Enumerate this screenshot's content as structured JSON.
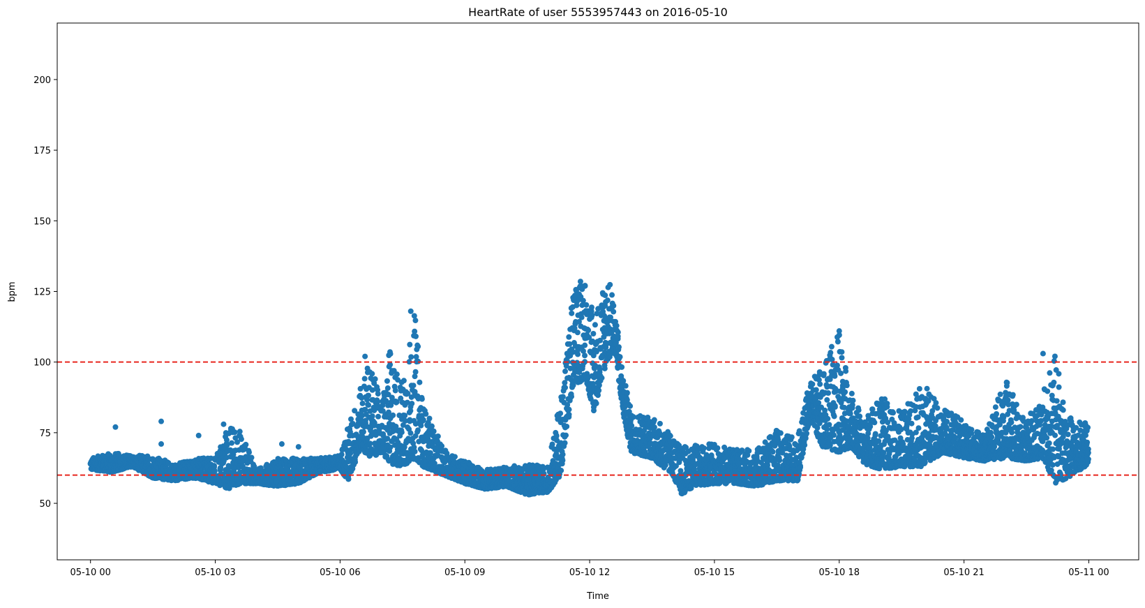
{
  "chart_data": {
    "type": "scatter",
    "title": "HeartRate of user 5553957443 on 2016-05-10",
    "xlabel": "Time",
    "ylabel": "bpm",
    "x_unit": "hours since 2016-05-10 00:00",
    "xlim": [
      -0.8,
      25.2
    ],
    "ylim": [
      30,
      220
    ],
    "x_ticks": [
      {
        "value": 0,
        "label": "05-10 00"
      },
      {
        "value": 3,
        "label": "05-10 03"
      },
      {
        "value": 6,
        "label": "05-10 06"
      },
      {
        "value": 9,
        "label": "05-10 09"
      },
      {
        "value": 12,
        "label": "05-10 12"
      },
      {
        "value": 15,
        "label": "05-10 15"
      },
      {
        "value": 18,
        "label": "05-10 18"
      },
      {
        "value": 21,
        "label": "05-10 21"
      },
      {
        "value": 24,
        "label": "05-11 00"
      }
    ],
    "y_ticks": [
      {
        "value": 50,
        "label": "50"
      },
      {
        "value": 75,
        "label": "75"
      },
      {
        "value": 100,
        "label": "100"
      },
      {
        "value": 125,
        "label": "125"
      },
      {
        "value": 150,
        "label": "150"
      },
      {
        "value": 175,
        "label": "175"
      },
      {
        "value": 200,
        "label": "200"
      }
    ],
    "reference_lines": [
      {
        "y": 100,
        "color": "#e8261d",
        "style": "dashed"
      },
      {
        "y": 60,
        "color": "#e8261d",
        "style": "dashed"
      }
    ],
    "series": [
      {
        "color": "#1f77b4",
        "points_profile": {
          "note": "approximate band of heart-rate readings (min, max) over time",
          "x": [
            0.0,
            0.5,
            1.0,
            1.5,
            2.0,
            2.5,
            3.0,
            3.3,
            3.6,
            4.0,
            4.5,
            5.0,
            5.5,
            6.0,
            6.2,
            6.5,
            6.7,
            7.0,
            7.2,
            7.5,
            7.8,
            8.0,
            8.5,
            9.0,
            9.5,
            10.0,
            10.5,
            11.0,
            11.3,
            11.6,
            11.9,
            12.1,
            12.4,
            12.6,
            12.8,
            13.0,
            13.5,
            14.0,
            14.2,
            14.5,
            15.0,
            15.5,
            16.0,
            16.5,
            17.0,
            17.3,
            17.6,
            18.0,
            18.3,
            18.6,
            19.0,
            19.5,
            20.0,
            20.5,
            21.0,
            21.5,
            22.0,
            22.5,
            22.9,
            23.2,
            23.5,
            24.0
          ],
          "y_min": [
            62,
            61,
            63,
            59,
            58,
            59,
            57,
            55,
            57,
            57,
            56,
            57,
            61,
            62,
            58,
            70,
            66,
            68,
            64,
            63,
            66,
            63,
            60,
            57,
            55,
            56,
            53,
            54,
            60,
            90,
            95,
            82,
            100,
            104,
            82,
            68,
            66,
            60,
            53,
            56,
            57,
            57,
            56,
            58,
            58,
            80,
            70,
            68,
            70,
            64,
            62,
            63,
            63,
            68,
            66,
            65,
            66,
            65,
            66,
            57,
            59,
            64
          ],
          "y_max": [
            66,
            68,
            67,
            67,
            64,
            66,
            66,
            78,
            76,
            62,
            66,
            66,
            66,
            67,
            78,
            91,
            102,
            85,
            105,
            93,
            118,
            85,
            69,
            65,
            62,
            63,
            64,
            63,
            88,
            126,
            131,
            116,
            133,
            122,
            96,
            83,
            81,
            74,
            70,
            71,
            71,
            69,
            69,
            76,
            73,
            94,
            99,
            111,
            89,
            80,
            88,
            82,
            93,
            84,
            79,
            74,
            95,
            79,
            90,
            103,
            81,
            78
          ],
          "outliers": [
            {
              "x": 0.6,
              "y": 77
            },
            {
              "x": 1.7,
              "y": 79
            },
            {
              "x": 1.7,
              "y": 71
            },
            {
              "x": 2.6,
              "y": 74
            },
            {
              "x": 3.2,
              "y": 78
            },
            {
              "x": 4.6,
              "y": 71
            },
            {
              "x": 5.0,
              "y": 70
            },
            {
              "x": 6.6,
              "y": 102
            },
            {
              "x": 7.7,
              "y": 118
            },
            {
              "x": 18.0,
              "y": 111
            },
            {
              "x": 22.9,
              "y": 103
            },
            {
              "x": 21.7,
              "y": 77
            }
          ]
        }
      }
    ]
  }
}
